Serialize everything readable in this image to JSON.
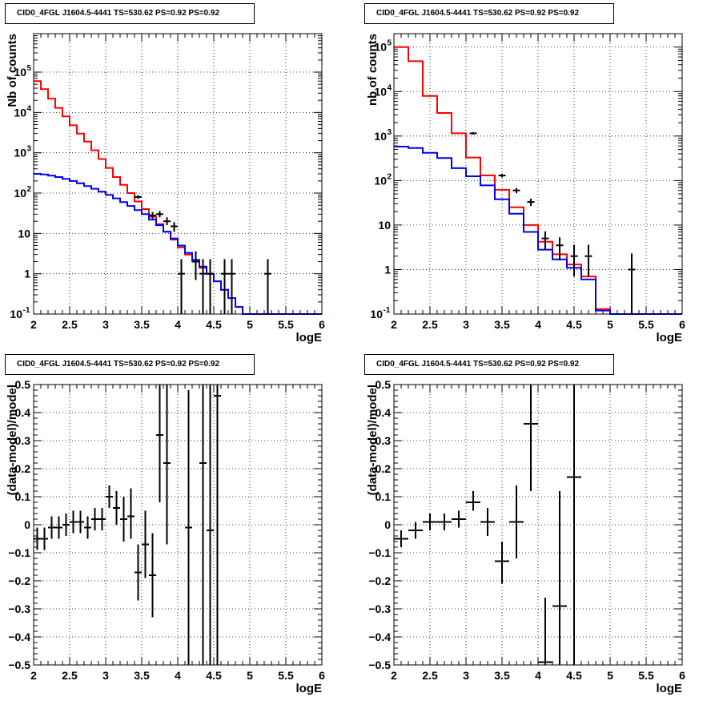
{
  "panels": [
    {
      "title": "CID0_4FGL J1604.5-4441 TS=530.62 PS=0.92 PS=0.92",
      "chart_data": {
        "type": "line",
        "xlabel": "logE",
        "ylabel": "Nb of counts",
        "xlim": [
          2,
          6
        ],
        "ylim": [
          0.1,
          900000
        ],
        "yscale": "log",
        "grid": true,
        "xticks": [
          "2",
          "2.5",
          "3",
          "3.5",
          "4",
          "4.5",
          "5",
          "5.5",
          "6"
        ],
        "yticks": [
          {
            "value": 0.1,
            "label": "10",
            "exp": "-1"
          },
          {
            "value": 1,
            "label": "1",
            "exp": ""
          },
          {
            "value": 10,
            "label": "10",
            "exp": ""
          },
          {
            "value": 100,
            "label": "10",
            "exp": "2"
          },
          {
            "value": 1000,
            "label": "10",
            "exp": "3"
          },
          {
            "value": 10000,
            "label": "10",
            "exp": "4"
          },
          {
            "value": 100000,
            "label": "10",
            "exp": "5"
          }
        ],
        "bin_edges": [
          2.0,
          2.1,
          2.2,
          2.3,
          2.4,
          2.5,
          2.6,
          2.7,
          2.8,
          2.9,
          3.0,
          3.1,
          3.2,
          3.3,
          3.4,
          3.5,
          3.6,
          3.7,
          3.8,
          3.9,
          4.0,
          4.1,
          4.2,
          4.3,
          4.4,
          4.5,
          4.6,
          4.7,
          4.8,
          4.9,
          5.0,
          5.1,
          5.2,
          5.3,
          5.4,
          5.5,
          5.6,
          5.7,
          5.8,
          5.9,
          6.0
        ],
        "series": [
          {
            "name": "",
            "kind": "hist",
            "color": "#ff0000",
            "values": [
              60000,
              38000,
              22000,
              13000,
              8000,
              4800,
              3000,
              1900,
              1150,
              700,
              420,
              250,
              160,
              100,
              62,
              40,
              26,
              17,
              11,
              7,
              4.5,
              3.0,
              2.0,
              1.4,
              1.0,
              0.65,
              0.4,
              0.25,
              0.15,
              0.1,
              0.1,
              0.1,
              0.1,
              0.1,
              0.1,
              0.1,
              0.1,
              0.1,
              0.1,
              0.1
            ]
          },
          {
            "name": "",
            "kind": "hist",
            "color": "#0000ff",
            "values": [
              300,
              290,
              270,
              250,
              225,
              200,
              175,
              150,
              128,
              108,
              90,
              74,
              60,
              48,
              38,
              30,
              22,
              16,
              11,
              7.5,
              5,
              3.3,
              2.2,
              1.5,
              1.0,
              0.65,
              0.4,
              0.25,
              0.15,
              0.1,
              0.1,
              0.1,
              0.1,
              0.1,
              0.1,
              0.1,
              0.1,
              0.1,
              0.1,
              0.1
            ]
          },
          {
            "name": "",
            "kind": "errors",
            "color": "#000000",
            "points": [
              {
                "x": 3.45,
                "y": 80,
                "lo": 72,
                "hi": 89
              },
              {
                "x": 3.65,
                "y": 28,
                "lo": 23,
                "hi": 34
              },
              {
                "x": 3.75,
                "y": 30,
                "lo": 25,
                "hi": 36
              },
              {
                "x": 3.85,
                "y": 20,
                "lo": 16,
                "hi": 25
              },
              {
                "x": 3.95,
                "y": 15,
                "lo": 11,
                "hi": 19
              },
              {
                "x": 4.05,
                "y": 1,
                "lo": 0.1,
                "hi": 2.3
              },
              {
                "x": 4.25,
                "y": 2,
                "lo": 0.7,
                "hi": 3.6
              },
              {
                "x": 4.35,
                "y": 1,
                "lo": 0.1,
                "hi": 2.3
              },
              {
                "x": 4.45,
                "y": 1,
                "lo": 0.1,
                "hi": 2.3
              },
              {
                "x": 4.65,
                "y": 1,
                "lo": 0.1,
                "hi": 2.3
              },
              {
                "x": 4.75,
                "y": 1,
                "lo": 0.1,
                "hi": 2.3
              },
              {
                "x": 5.25,
                "y": 1,
                "lo": 0.1,
                "hi": 2.3
              }
            ]
          }
        ]
      }
    },
    {
      "title": "CID0_4FGL J1604.5-4441 TS=530.62 PS=0.92 PS=0.92",
      "chart_data": {
        "type": "line",
        "xlabel": "logE",
        "ylabel": "nb of counts",
        "xlim": [
          2,
          6
        ],
        "ylim": [
          0.1,
          200000
        ],
        "yscale": "log",
        "grid": true,
        "xticks": [
          "2",
          "2.5",
          "3",
          "3.5",
          "4",
          "4.5",
          "5",
          "5.5",
          "6"
        ],
        "yticks": [
          {
            "value": 0.1,
            "label": "10",
            "exp": "-1"
          },
          {
            "value": 1,
            "label": "1",
            "exp": ""
          },
          {
            "value": 10,
            "label": "10",
            "exp": ""
          },
          {
            "value": 100,
            "label": "10",
            "exp": "2"
          },
          {
            "value": 1000,
            "label": "10",
            "exp": "3"
          },
          {
            "value": 10000,
            "label": "10",
            "exp": "4"
          },
          {
            "value": 100000,
            "label": "10",
            "exp": "5"
          }
        ],
        "bin_edges": [
          2.0,
          2.2,
          2.4,
          2.6,
          2.8,
          3.0,
          3.2,
          3.4,
          3.6,
          3.8,
          4.0,
          4.2,
          4.4,
          4.6,
          4.8,
          5.0,
          5.2,
          5.4,
          5.6,
          5.8,
          6.0
        ],
        "series": [
          {
            "name": "",
            "kind": "hist",
            "color": "#ff0000",
            "values": [
              100000,
              48000,
              8000,
              3300,
              1150,
              330,
              130,
              62,
              25,
              10,
              4.2,
              2.2,
              1.3,
              0.7,
              0.13,
              0.1,
              0.1,
              0.1,
              0.1,
              0.1
            ]
          },
          {
            "name": "",
            "kind": "hist",
            "color": "#0000ff",
            "values": [
              580,
              540,
              420,
              320,
              190,
              125,
              78,
              38,
              18,
              7,
              2.8,
              1.7,
              1.1,
              0.6,
              0.12,
              0.1,
              0.1,
              0.1,
              0.1,
              0.1
            ]
          },
          {
            "name": "",
            "kind": "errors",
            "color": "#000000",
            "points": [
              {
                "x": 3.1,
                "y": 1150,
                "lo": 1080,
                "hi": 1220
              },
              {
                "x": 3.5,
                "y": 130,
                "lo": 118,
                "hi": 142
              },
              {
                "x": 3.7,
                "y": 60,
                "lo": 52,
                "hi": 68
              },
              {
                "x": 3.9,
                "y": 33,
                "lo": 27,
                "hi": 39
              },
              {
                "x": 4.1,
                "y": 5,
                "lo": 2.8,
                "hi": 7.2
              },
              {
                "x": 4.3,
                "y": 3.5,
                "lo": 1.6,
                "hi": 5.3
              },
              {
                "x": 4.5,
                "y": 2,
                "lo": 0.7,
                "hi": 3.6
              },
              {
                "x": 4.7,
                "y": 2,
                "lo": 0.7,
                "hi": 3.6
              },
              {
                "x": 5.3,
                "y": 1,
                "lo": 0.1,
                "hi": 2.3
              }
            ]
          }
        ]
      }
    },
    {
      "title": "CID0_4FGL J1604.5-4441 TS=530.62 PS=0.92 PS=0.92",
      "chart_data": {
        "type": "scatter",
        "xlabel": "logE",
        "ylabel": "(data-model)/model",
        "xlim": [
          2,
          6
        ],
        "ylim": [
          -0.5,
          0.5
        ],
        "yscale": "linear",
        "grid": true,
        "xticks": [
          "2",
          "2.5",
          "3",
          "3.5",
          "4",
          "4.5",
          "5",
          "5.5",
          "6"
        ],
        "yticks": [
          {
            "value": -0.5,
            "label": "−0.5",
            "exp": ""
          },
          {
            "value": -0.4,
            "label": "−0.4",
            "exp": ""
          },
          {
            "value": -0.3,
            "label": "−0.3",
            "exp": ""
          },
          {
            "value": -0.2,
            "label": "−0.2",
            "exp": ""
          },
          {
            "value": -0.1,
            "label": "−0.1",
            "exp": ""
          },
          {
            "value": 0,
            "label": "0",
            "exp": ""
          },
          {
            "value": 0.1,
            "label": "0.1",
            "exp": ""
          },
          {
            "value": 0.2,
            "label": "0.2",
            "exp": ""
          },
          {
            "value": 0.3,
            "label": "0.3",
            "exp": ""
          },
          {
            "value": 0.4,
            "label": "0.4",
            "exp": ""
          },
          {
            "value": 0.5,
            "label": "0.5",
            "exp": ""
          }
        ],
        "xerr": 0.05,
        "series": [
          {
            "name": "",
            "kind": "errors",
            "color": "#000000",
            "points": [
              {
                "x": 2.05,
                "y": -0.05,
                "lo": -0.09,
                "hi": -0.01
              },
              {
                "x": 2.15,
                "y": -0.05,
                "lo": -0.09,
                "hi": -0.01
              },
              {
                "x": 2.25,
                "y": -0.01,
                "lo": -0.05,
                "hi": 0.03
              },
              {
                "x": 2.35,
                "y": -0.01,
                "lo": -0.05,
                "hi": 0.03
              },
              {
                "x": 2.45,
                "y": 0.0,
                "lo": -0.04,
                "hi": 0.04
              },
              {
                "x": 2.55,
                "y": 0.01,
                "lo": -0.03,
                "hi": 0.05
              },
              {
                "x": 2.65,
                "y": 0.01,
                "lo": -0.03,
                "hi": 0.05
              },
              {
                "x": 2.75,
                "y": -0.01,
                "lo": -0.05,
                "hi": 0.03
              },
              {
                "x": 2.85,
                "y": 0.02,
                "lo": -0.02,
                "hi": 0.06
              },
              {
                "x": 2.95,
                "y": 0.02,
                "lo": -0.02,
                "hi": 0.06
              },
              {
                "x": 3.05,
                "y": 0.1,
                "lo": 0.06,
                "hi": 0.14
              },
              {
                "x": 3.15,
                "y": 0.06,
                "lo": 0.0,
                "hi": 0.12
              },
              {
                "x": 3.25,
                "y": 0.02,
                "lo": -0.06,
                "hi": 0.1
              },
              {
                "x": 3.35,
                "y": 0.03,
                "lo": -0.05,
                "hi": 0.13
              },
              {
                "x": 3.45,
                "y": -0.17,
                "lo": -0.27,
                "hi": -0.07
              },
              {
                "x": 3.55,
                "y": -0.07,
                "lo": -0.19,
                "hi": 0.05
              },
              {
                "x": 3.65,
                "y": -0.18,
                "lo": -0.33,
                "hi": -0.03
              },
              {
                "x": 3.75,
                "y": 0.32,
                "lo": 0.08,
                "hi": 0.5
              },
              {
                "x": 3.85,
                "y": 0.22,
                "lo": -0.07,
                "hi": 0.5
              },
              {
                "x": 4.15,
                "y": -0.01,
                "lo": -0.5,
                "hi": 0.48
              },
              {
                "x": 4.35,
                "y": 0.22,
                "lo": -0.5,
                "hi": 0.5
              },
              {
                "x": 4.45,
                "y": -0.02,
                "lo": -0.5,
                "hi": 0.5
              },
              {
                "x": 4.55,
                "y": 0.46,
                "lo": -0.5,
                "hi": 0.5
              }
            ]
          }
        ]
      }
    },
    {
      "title": "CID0_4FGL J1604.5-4441 TS=530.62 PS=0.92 PS=0.92",
      "chart_data": {
        "type": "scatter",
        "xlabel": "logE",
        "ylabel": "(data-model)/model",
        "xlim": [
          2,
          6
        ],
        "ylim": [
          -0.5,
          0.5
        ],
        "yscale": "linear",
        "grid": true,
        "xticks": [
          "2",
          "2.5",
          "3",
          "3.5",
          "4",
          "4.5",
          "5",
          "5.5",
          "6"
        ],
        "yticks": [
          {
            "value": -0.5,
            "label": "−0.5",
            "exp": ""
          },
          {
            "value": -0.4,
            "label": "−0.4",
            "exp": ""
          },
          {
            "value": -0.3,
            "label": "−0.3",
            "exp": ""
          },
          {
            "value": -0.2,
            "label": "−0.2",
            "exp": ""
          },
          {
            "value": -0.1,
            "label": "−0.1",
            "exp": ""
          },
          {
            "value": 0,
            "label": "0",
            "exp": ""
          },
          {
            "value": 0.1,
            "label": "0.1",
            "exp": ""
          },
          {
            "value": 0.2,
            "label": "0.2",
            "exp": ""
          },
          {
            "value": 0.3,
            "label": "0.3",
            "exp": ""
          },
          {
            "value": 0.4,
            "label": "0.4",
            "exp": ""
          },
          {
            "value": 0.5,
            "label": "0.5",
            "exp": ""
          }
        ],
        "xerr": 0.1,
        "series": [
          {
            "name": "",
            "kind": "errors",
            "color": "#000000",
            "points": [
              {
                "x": 2.1,
                "y": -0.05,
                "lo": -0.08,
                "hi": -0.02
              },
              {
                "x": 2.3,
                "y": -0.02,
                "lo": -0.05,
                "hi": 0.01
              },
              {
                "x": 2.5,
                "y": 0.01,
                "lo": -0.02,
                "hi": 0.04
              },
              {
                "x": 2.7,
                "y": 0.01,
                "lo": -0.02,
                "hi": 0.04
              },
              {
                "x": 2.9,
                "y": 0.02,
                "lo": -0.01,
                "hi": 0.05
              },
              {
                "x": 3.1,
                "y": 0.08,
                "lo": 0.05,
                "hi": 0.12
              },
              {
                "x": 3.3,
                "y": 0.01,
                "lo": -0.04,
                "hi": 0.06
              },
              {
                "x": 3.5,
                "y": -0.13,
                "lo": -0.21,
                "hi": -0.06
              },
              {
                "x": 3.7,
                "y": 0.01,
                "lo": -0.12,
                "hi": 0.14
              },
              {
                "x": 3.9,
                "y": 0.36,
                "lo": 0.12,
                "hi": 0.5
              },
              {
                "x": 4.1,
                "y": -0.49,
                "lo": -0.5,
                "hi": -0.26
              },
              {
                "x": 4.3,
                "y": -0.29,
                "lo": -0.5,
                "hi": 0.12
              },
              {
                "x": 4.5,
                "y": 0.17,
                "lo": -0.5,
                "hi": 0.5
              }
            ]
          }
        ]
      }
    }
  ]
}
